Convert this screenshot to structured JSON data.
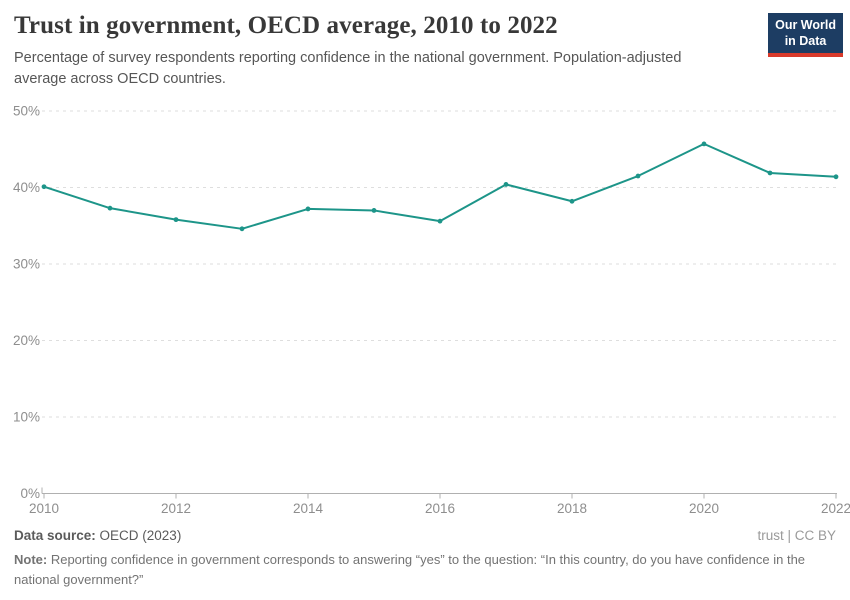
{
  "header": {
    "title": "Trust in government, OECD average, 2010 to 2022",
    "subtitle": "Percentage of survey respondents reporting confidence in the national government. Population-adjusted average across OECD countries.",
    "logo": {
      "line1": "Our World",
      "line2": "in Data",
      "bg_color": "#1d3d63",
      "accent_color": "#d93a2b"
    }
  },
  "chart_data": {
    "type": "line",
    "title": "Trust in government, OECD average, 2010 to 2022",
    "x": [
      2010,
      2011,
      2012,
      2013,
      2014,
      2015,
      2016,
      2017,
      2018,
      2019,
      2020,
      2021,
      2022
    ],
    "series": [
      {
        "name": "OECD average",
        "color": "#1d9589",
        "values": [
          40.1,
          37.3,
          35.8,
          34.6,
          37.2,
          37.0,
          35.6,
          40.4,
          38.2,
          41.5,
          45.7,
          41.9,
          41.4
        ]
      }
    ],
    "xlabel": "",
    "ylabel": "",
    "ylim": [
      0,
      50
    ],
    "ytick_values": [
      0,
      10,
      20,
      30,
      40,
      50
    ],
    "ytick_labels": [
      "0%",
      "10%",
      "20%",
      "30%",
      "40%",
      "50%"
    ],
    "xtick_values": [
      2010,
      2012,
      2014,
      2016,
      2018,
      2020,
      2022
    ],
    "xtick_labels": [
      "2010",
      "2012",
      "2014",
      "2016",
      "2018",
      "2020",
      "2022"
    ],
    "grid": "horizontal-dashed",
    "legend": "none",
    "colors": {
      "gridline": "#dedede",
      "axis": "#b0b0b0",
      "tick_label": "#8e8e8e"
    }
  },
  "footer": {
    "data_source_label": "Data source:",
    "data_source_value": " OECD (2023)",
    "attribution": "trust | CC BY",
    "note_label": "Note:",
    "note_text": " Reporting confidence in government corresponds to answering “yes” to the question: “In this country, do you have confidence in the national government?”"
  }
}
